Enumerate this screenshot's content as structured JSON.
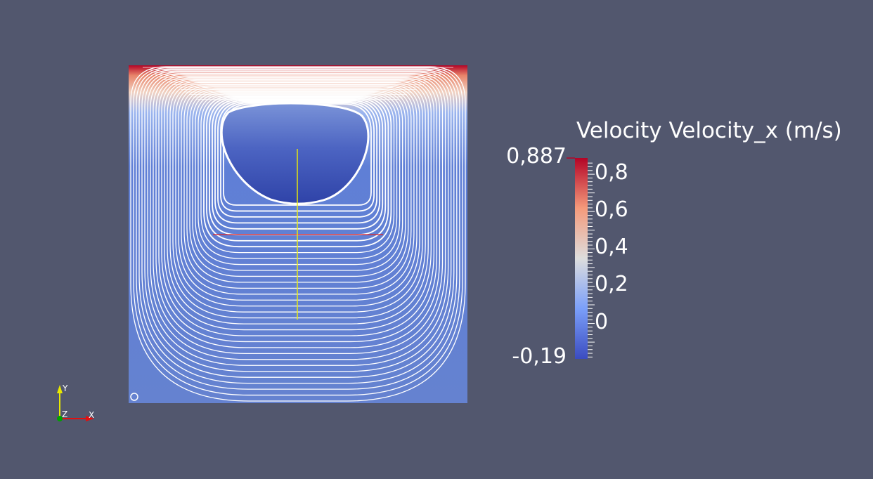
{
  "colorbar": {
    "title": "Velocity Velocity_x (m/s)",
    "range_max_label": "0,887",
    "range_min_label": "-0,19",
    "range": [
      -0.19,
      0.887
    ],
    "tick_values": [
      0.8,
      0.6,
      0.4,
      0.2,
      0
    ],
    "tick_labels": [
      "0,8",
      "0,6",
      "0,4",
      "0,2",
      "0"
    ],
    "colormap": [
      "#3b4cc0",
      "#7b9ff9",
      "#dddddd",
      "#f49a7b",
      "#b40426"
    ]
  },
  "axes_triad": {
    "x_label": "X",
    "y_label": "Y",
    "z_label": "Z",
    "x_color": "#e01010",
    "y_color": "#e8e800",
    "z_color": "#00a000"
  },
  "colors": {
    "background": "#52576e",
    "streamline": "#ffffff",
    "probe_vertical": "#f0f000",
    "probe_horizontal": "#e02020"
  }
}
